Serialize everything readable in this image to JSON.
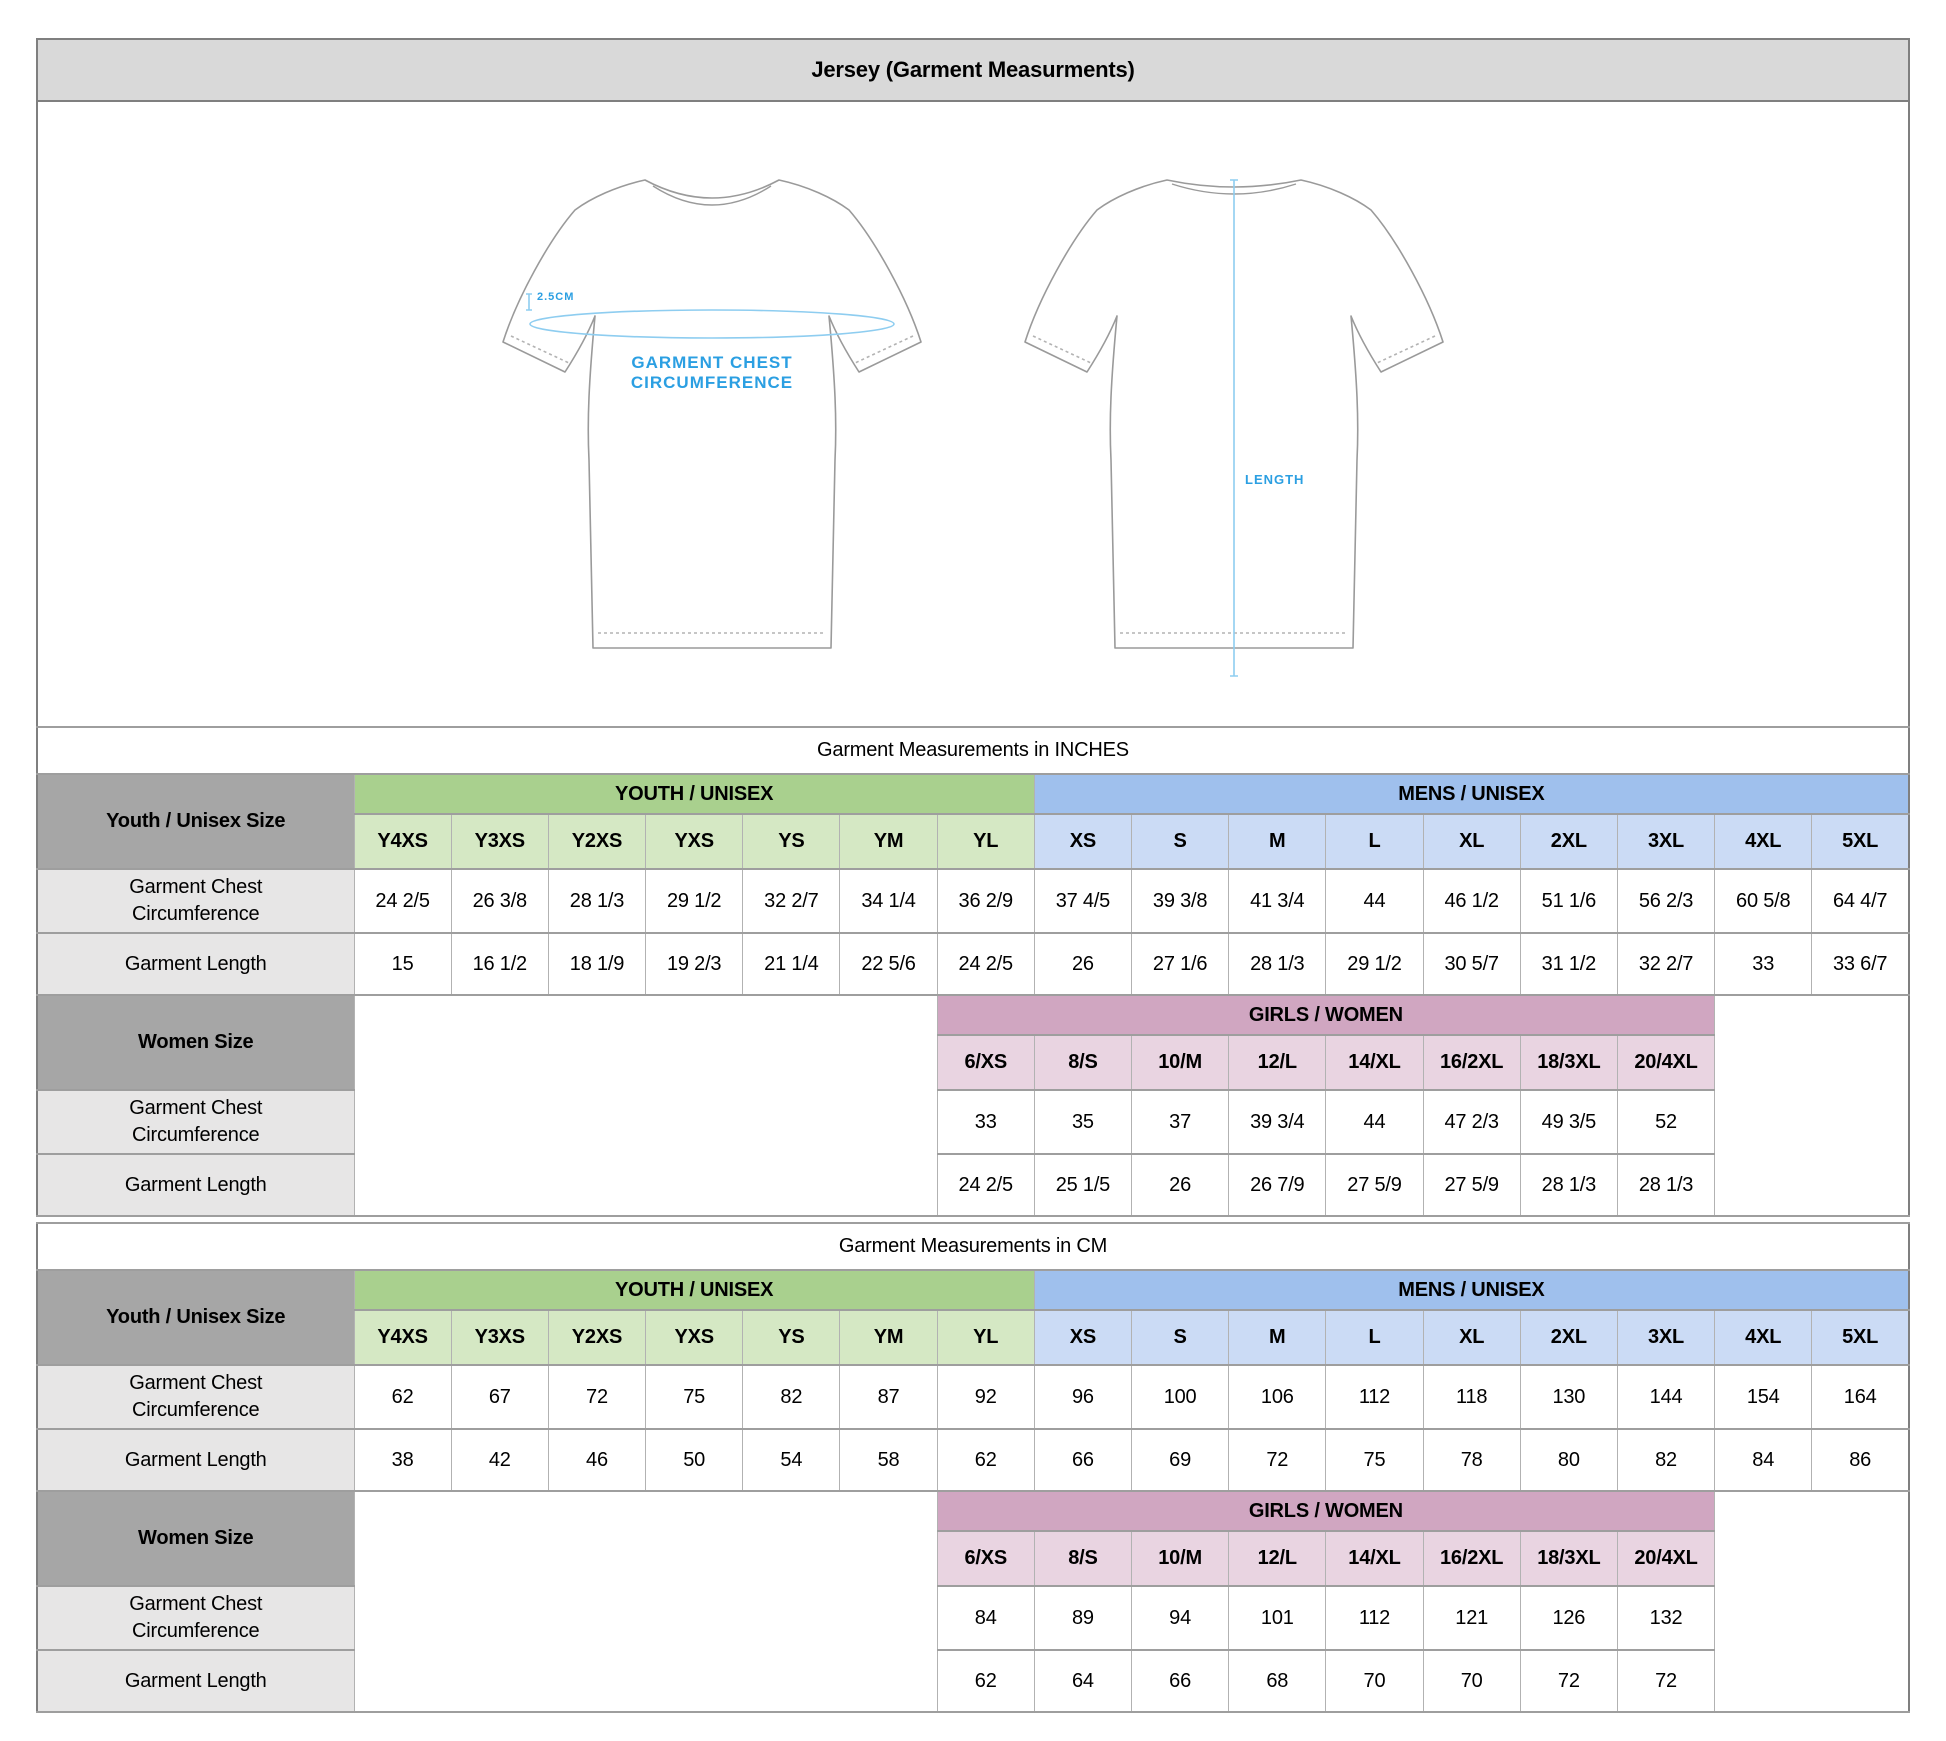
{
  "title": "Jersey (Garment Measurments)",
  "colors": {
    "titlebar-bg": "#d9d9d9",
    "frame-border": "#7f7f7f",
    "gray-header": "#a6a6a6",
    "label-cell": "#e7e6e6",
    "green-band": "#a9d08e",
    "green-cell": "#d5e8c4",
    "blue-band": "#9fc0ed",
    "blue-cell": "#cbdbf5",
    "pink-band": "#d0a6c1",
    "pink-cell": "#e9d4e1",
    "annotation-blue": "#2b9fe2",
    "line-blue": "#8ecdf0"
  },
  "diagram": {
    "offset_label": "2.5CM",
    "chest_label_line1": "GARMENT CHEST",
    "chest_label_line2": "CIRCUMFERENCE",
    "length_label": "LENGTH"
  },
  "tables": [
    {
      "title": "Garment Measurements in INCHES",
      "row_header": "Youth / Unisex Size",
      "youth_group": "YOUTH / UNISEX",
      "mens_group": "MENS / UNISEX",
      "girls_group": "GIRLS / WOMEN",
      "women_header": "Women Size",
      "chest_label": "Garment Chest Circumference",
      "length_label": "Garment Length",
      "youth_sizes": [
        "Y4XS",
        "Y3XS",
        "Y2XS",
        "YXS",
        "YS",
        "YM",
        "YL"
      ],
      "mens_sizes": [
        "XS",
        "S",
        "M",
        "L",
        "XL",
        "2XL",
        "3XL",
        "4XL",
        "5XL"
      ],
      "chest_values": [
        "24 2/5",
        "26 3/8",
        "28 1/3",
        "29 1/2",
        "32 2/7",
        "34 1/4",
        "36 2/9",
        "37 4/5",
        "39 3/8",
        "41 3/4",
        "44",
        "46 1/2",
        "51 1/6",
        "56 2/3",
        "60 5/8",
        "64 4/7"
      ],
      "length_values": [
        "15",
        "16 1/2",
        "18 1/9",
        "19 2/3",
        "21 1/4",
        "22 5/6",
        "24 2/5",
        "26",
        "27 1/6",
        "28 1/3",
        "29 1/2",
        "30 5/7",
        "31 1/2",
        "32 2/7",
        "33",
        "33 6/7"
      ],
      "girls_sizes": [
        "6/XS",
        "8/S",
        "10/M",
        "12/L",
        "14/XL",
        "16/2XL",
        "18/3XL",
        "20/4XL"
      ],
      "women_chest_values": [
        "33",
        "35",
        "37",
        "39 3/4",
        "44",
        "47 2/3",
        "49 3/5",
        "52"
      ],
      "women_length_values": [
        "24 2/5",
        "25 1/5",
        "26",
        "26 7/9",
        "27 5/9",
        "27 5/9",
        "28 1/3",
        "28 1/3"
      ]
    },
    {
      "title": "Garment Measurements in CM",
      "row_header": "Youth / Unisex Size",
      "youth_group": "YOUTH / UNISEX",
      "mens_group": "MENS / UNISEX",
      "girls_group": "GIRLS / WOMEN",
      "women_header": "Women Size",
      "chest_label": "Garment Chest Circumference",
      "length_label": "Garment Length",
      "youth_sizes": [
        "Y4XS",
        "Y3XS",
        "Y2XS",
        "YXS",
        "YS",
        "YM",
        "YL"
      ],
      "mens_sizes": [
        "XS",
        "S",
        "M",
        "L",
        "XL",
        "2XL",
        "3XL",
        "4XL",
        "5XL"
      ],
      "chest_values": [
        "62",
        "67",
        "72",
        "75",
        "82",
        "87",
        "92",
        "96",
        "100",
        "106",
        "112",
        "118",
        "130",
        "144",
        "154",
        "164"
      ],
      "length_values": [
        "38",
        "42",
        "46",
        "50",
        "54",
        "58",
        "62",
        "66",
        "69",
        "72",
        "75",
        "78",
        "80",
        "82",
        "84",
        "86"
      ],
      "girls_sizes": [
        "6/XS",
        "8/S",
        "10/M",
        "12/L",
        "14/XL",
        "16/2XL",
        "18/3XL",
        "20/4XL"
      ],
      "women_chest_values": [
        "84",
        "89",
        "94",
        "101",
        "112",
        "121",
        "126",
        "132"
      ],
      "women_length_values": [
        "62",
        "64",
        "66",
        "68",
        "70",
        "70",
        "72",
        "72"
      ]
    }
  ]
}
